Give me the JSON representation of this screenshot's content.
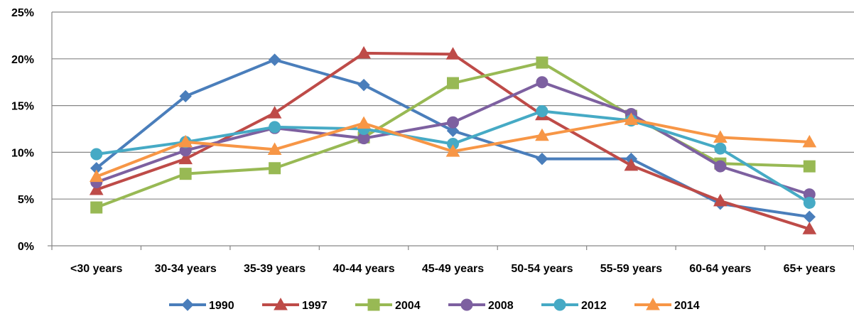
{
  "chart_data": {
    "type": "line",
    "title": "",
    "xlabel": "",
    "ylabel": "",
    "categories": [
      "<30 years",
      "30-34 years",
      "35-39 years",
      "40-44 years",
      "45-49 years",
      "50-54 years",
      "55-59 years",
      "60-64 years",
      "65+ years"
    ],
    "y_ticks": [
      "0%",
      "5%",
      "10%",
      "15%",
      "20%",
      "25%"
    ],
    "ylim": [
      0,
      25
    ],
    "grid": true,
    "legend_position": "bottom",
    "series": [
      {
        "name": "1990",
        "color": "#4a7ebb",
        "marker": "diamond",
        "values": [
          8.3,
          16.0,
          19.9,
          17.2,
          12.3,
          9.3,
          9.3,
          4.5,
          3.1
        ]
      },
      {
        "name": "1997",
        "color": "#be4b48",
        "marker": "triangle",
        "values": [
          6.0,
          9.3,
          14.2,
          20.6,
          20.5,
          14.0,
          8.6,
          4.8,
          1.8
        ]
      },
      {
        "name": "2004",
        "color": "#98b954",
        "marker": "square",
        "values": [
          4.1,
          7.7,
          8.3,
          11.6,
          17.4,
          19.6,
          13.9,
          8.8,
          8.5
        ]
      },
      {
        "name": "2008",
        "color": "#7d60a0",
        "marker": "circle",
        "values": [
          6.8,
          10.2,
          12.6,
          11.5,
          13.2,
          17.5,
          14.1,
          8.5,
          5.5
        ]
      },
      {
        "name": "2012",
        "color": "#46aac5",
        "marker": "circle",
        "values": [
          9.8,
          11.1,
          12.7,
          12.5,
          10.9,
          14.4,
          13.4,
          10.4,
          4.6
        ]
      },
      {
        "name": "2014",
        "color": "#f79646",
        "marker": "triangle",
        "values": [
          7.4,
          11.1,
          10.3,
          13.1,
          10.1,
          11.8,
          13.5,
          11.6,
          11.1
        ]
      }
    ]
  }
}
